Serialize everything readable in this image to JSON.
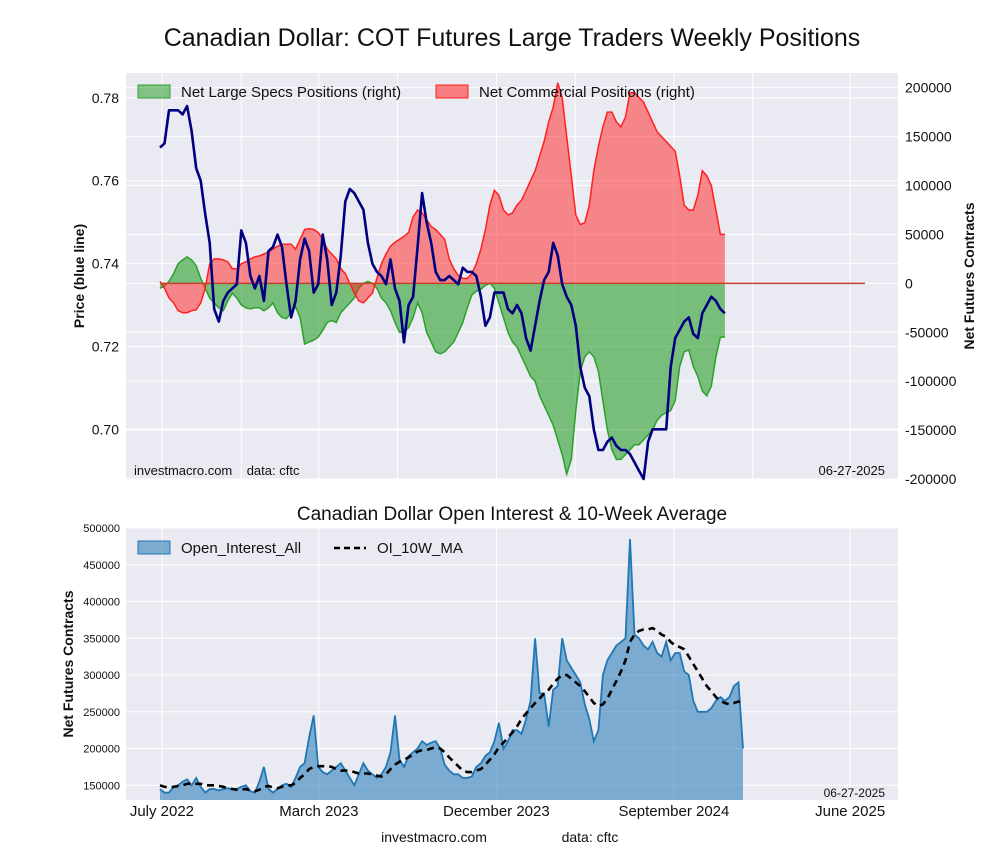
{
  "page": {
    "title": "Canadian Dollar: COT Futures Large Traders Weekly Positions",
    "footer_left": "investmacro.com",
    "footer_right": "data: cftc"
  },
  "chart_data": [
    {
      "type": "area",
      "title": "Canadian Dollar: COT Futures Large Traders Weekly Positions",
      "ylabel": "Price (blue line)",
      "y2label": "Net Futures Contracts",
      "ylim": [
        0.688,
        0.786
      ],
      "y2lim": [
        -200000,
        215000
      ],
      "yticks": [
        "0.70",
        "0.72",
        "0.74",
        "0.76",
        "0.78"
      ],
      "y2ticks": [
        "-200000",
        "-150000",
        "-100000",
        "-50000",
        "0",
        "50000",
        "100000",
        "150000",
        "200000"
      ],
      "legend": [
        "Net Large Specs Positions (right)",
        "Net Commercial Positions (right)"
      ],
      "legend_position": "top-left",
      "watermark_left": "investmacro.com    data: cftc",
      "date_label": "06-27-2025",
      "grid": true,
      "x_range": [
        "2022-06-28",
        "2025-06-24"
      ],
      "colors": {
        "specs": "#2ca02c",
        "commercial": "#ff2020",
        "price": "#000080"
      },
      "series": [
        {
          "name": "Net Large Specs Positions (right)",
          "start": "2022-06-28",
          "step_days": 7,
          "values": [
            -5000,
            -3000,
            2000,
            10000,
            20000,
            24000,
            27000,
            24000,
            18000,
            5000,
            -5000,
            -15000,
            -20000,
            -25000,
            -28000,
            -18000,
            -10000,
            -15000,
            -22000,
            -25000,
            -26000,
            -25000,
            -25000,
            -28000,
            -25000,
            -20000,
            -30000,
            -35000,
            -36000,
            -30000,
            -24000,
            -35000,
            -62000,
            -60000,
            -58000,
            -55000,
            -48000,
            -40000,
            -38000,
            -40000,
            -30000,
            -25000,
            -20000,
            -15000,
            -5000,
            0,
            2000,
            0,
            -5000,
            -15000,
            -20000,
            -28000,
            -40000,
            -50000,
            -50000,
            -45000,
            -35000,
            -20000,
            -30000,
            -50000,
            -60000,
            -70000,
            -72000,
            -70000,
            -65000,
            -60000,
            -50000,
            -40000,
            -25000,
            -12000,
            -8000,
            -6000,
            -2000,
            0,
            -5000,
            -20000,
            -35000,
            -50000,
            -60000,
            -65000,
            -75000,
            -85000,
            -95000,
            -100000,
            -115000,
            -125000,
            -135000,
            -145000,
            -160000,
            -175000,
            -195000,
            -180000,
            -130000,
            -90000,
            -75000,
            -70000,
            -75000,
            -90000,
            -120000,
            -150000,
            -170000,
            -180000,
            -180000,
            -175000,
            -170000,
            -165000,
            -165000,
            -160000,
            -155000,
            -150000,
            -140000,
            -135000,
            -132000,
            -130000,
            -120000,
            -85000,
            -70000,
            -68000,
            -85000,
            -95000,
            -110000,
            -115000,
            -105000,
            -75000,
            -55000,
            -55000
          ]
        },
        {
          "name": "Net Commercial Positions (right)",
          "start": "2022-06-28",
          "step_days": 7,
          "values": [
            2000,
            -5000,
            -15000,
            -20000,
            -28000,
            -30000,
            -30000,
            -28000,
            -27000,
            -20000,
            -5000,
            20000,
            25000,
            25000,
            24000,
            22000,
            15000,
            15000,
            20000,
            22000,
            25000,
            27000,
            28000,
            30000,
            32000,
            35000,
            38000,
            40000,
            40000,
            40000,
            35000,
            45000,
            55000,
            56000,
            55000,
            52000,
            45000,
            35000,
            30000,
            25000,
            15000,
            10000,
            0,
            -10000,
            -18000,
            -20000,
            -15000,
            -10000,
            5000,
            20000,
            30000,
            38000,
            42000,
            45000,
            48000,
            52000,
            68000,
            75000,
            72000,
            65000,
            58000,
            55000,
            50000,
            45000,
            25000,
            15000,
            8000,
            5000,
            5000,
            10000,
            20000,
            35000,
            55000,
            80000,
            95000,
            90000,
            75000,
            70000,
            72000,
            80000,
            85000,
            95000,
            105000,
            115000,
            130000,
            145000,
            165000,
            180000,
            205000,
            190000,
            150000,
            110000,
            70000,
            60000,
            62000,
            80000,
            115000,
            140000,
            160000,
            175000,
            175000,
            165000,
            160000,
            170000,
            195000,
            195000,
            190000,
            185000,
            175000,
            165000,
            155000,
            150000,
            145000,
            140000,
            135000,
            110000,
            80000,
            75000,
            75000,
            90000,
            115000,
            110000,
            100000,
            75000,
            50000,
            50000
          ]
        },
        {
          "name": "Price (blue line)",
          "axis": "left",
          "start": "2022-06-28",
          "step_days": 7,
          "values": [
            0.768,
            0.769,
            0.777,
            0.777,
            0.777,
            0.776,
            0.778,
            0.772,
            0.763,
            0.76,
            0.752,
            0.745,
            0.729,
            0.726,
            0.731,
            0.733,
            0.734,
            0.735,
            0.748,
            0.745,
            0.737,
            0.734,
            0.737,
            0.731,
            0.743,
            0.744,
            0.747,
            0.744,
            0.735,
            0.727,
            0.731,
            0.741,
            0.746,
            0.743,
            0.733,
            0.735,
            0.747,
            0.741,
            0.73,
            0.733,
            0.742,
            0.755,
            0.758,
            0.757,
            0.755,
            0.753,
            0.745,
            0.74,
            0.738,
            0.737,
            0.735,
            0.741,
            0.734,
            0.731,
            0.721,
            0.73,
            0.732,
            0.744,
            0.757,
            0.75,
            0.745,
            0.738,
            0.736,
            0.736,
            0.737,
            0.736,
            0.735,
            0.739,
            0.738,
            0.738,
            0.737,
            0.732,
            0.725,
            0.727,
            0.733,
            0.733,
            0.733,
            0.729,
            0.728,
            0.73,
            0.728,
            0.722,
            0.719,
            0.725,
            0.731,
            0.736,
            0.738,
            0.745,
            0.742,
            0.735,
            0.732,
            0.73,
            0.725,
            0.715,
            0.71,
            0.708,
            0.7,
            0.695,
            0.695,
            0.697,
            0.698,
            0.696,
            0.695,
            0.695,
            0.694,
            0.692,
            0.69,
            0.688,
            0.697,
            0.7,
            0.7,
            0.7,
            0.7,
            0.715,
            0.722,
            0.724,
            0.726,
            0.727,
            0.723,
            0.722,
            0.728,
            0.73,
            0.732,
            0.731,
            0.729,
            0.728
          ]
        }
      ]
    },
    {
      "type": "area",
      "title": "Canadian Dollar Open Interest & 10-Week Average",
      "ylabel": "Net Futures Contracts",
      "ylim": [
        130000,
        500000
      ],
      "yticks": [
        "150000",
        "200000",
        "250000",
        "300000",
        "350000",
        "400000",
        "450000",
        "500000"
      ],
      "xticks": [
        "July 2022",
        "March 2023",
        "December 2023",
        "September 2024",
        "June 2025"
      ],
      "legend": [
        "Open_Interest_All",
        "OI_10W_MA"
      ],
      "legend_position": "top-left",
      "date_label": "06-27-2025",
      "grid": true,
      "colors": {
        "oi": "#1f77b4",
        "ma": "#000000"
      },
      "series": [
        {
          "name": "Open_Interest_All",
          "start": "2022-06-28",
          "step_days": 7,
          "values": [
            145000,
            140000,
            140000,
            148000,
            150000,
            155000,
            158000,
            150000,
            160000,
            148000,
            140000,
            145000,
            145000,
            143000,
            145000,
            146000,
            144000,
            145000,
            148000,
            150000,
            142000,
            140000,
            155000,
            175000,
            145000,
            140000,
            145000,
            150000,
            152000,
            148000,
            160000,
            175000,
            180000,
            215000,
            245000,
            175000,
            168000,
            165000,
            170000,
            175000,
            180000,
            170000,
            160000,
            150000,
            165000,
            180000,
            170000,
            165000,
            160000,
            165000,
            175000,
            195000,
            245000,
            185000,
            175000,
            190000,
            195000,
            200000,
            210000,
            205000,
            208000,
            210000,
            200000,
            178000,
            170000,
            165000,
            165000,
            160000,
            160000,
            162000,
            175000,
            180000,
            190000,
            195000,
            210000,
            235000,
            200000,
            210000,
            225000,
            225000,
            220000,
            240000,
            265000,
            350000,
            275000,
            275000,
            230000,
            280000,
            285000,
            350000,
            320000,
            310000,
            300000,
            290000,
            260000,
            240000,
            210000,
            225000,
            300000,
            320000,
            330000,
            340000,
            345000,
            350000,
            485000,
            355000,
            350000,
            340000,
            335000,
            345000,
            330000,
            325000,
            345000,
            320000,
            330000,
            330000,
            305000,
            300000,
            265000,
            250000,
            250000,
            250000,
            255000,
            265000,
            270000,
            265000,
            270000,
            285000,
            290000,
            200000
          ]
        },
        {
          "name": "OI_10W_MA",
          "start": "2022-06-28",
          "step_days": 7,
          "values": [
            150000,
            148000,
            147000,
            148000,
            149000,
            150000,
            152000,
            152000,
            152000,
            152000,
            150000,
            150000,
            150000,
            149000,
            148000,
            146000,
            145000,
            144000,
            144000,
            145000,
            143000,
            142000,
            144000,
            148000,
            149000,
            147000,
            146000,
            148000,
            150000,
            150000,
            153000,
            160000,
            165000,
            172000,
            175000,
            176000,
            176000,
            176000,
            175000,
            172000,
            170000,
            170000,
            170000,
            168000,
            166000,
            166000,
            166000,
            165000,
            163000,
            162000,
            165000,
            172000,
            178000,
            182000,
            185000,
            188000,
            192000,
            196000,
            198000,
            198000,
            200000,
            202000,
            200000,
            195000,
            188000,
            182000,
            176000,
            170000,
            168000,
            168000,
            170000,
            172000,
            178000,
            185000,
            192000,
            202000,
            208000,
            215000,
            222000,
            230000,
            240000,
            248000,
            255000,
            262000,
            268000,
            275000,
            280000,
            288000,
            295000,
            300000,
            300000,
            295000,
            290000,
            285000,
            278000,
            270000,
            262000,
            258000,
            260000,
            268000,
            280000,
            292000,
            305000,
            320000,
            345000,
            355000,
            360000,
            362000,
            362000,
            364000,
            360000,
            355000,
            352000,
            345000,
            340000,
            338000,
            335000,
            325000,
            315000,
            305000,
            295000,
            285000,
            278000,
            270000,
            265000,
            262000,
            260000,
            262000,
            264000,
            262000
          ]
        }
      ]
    }
  ]
}
